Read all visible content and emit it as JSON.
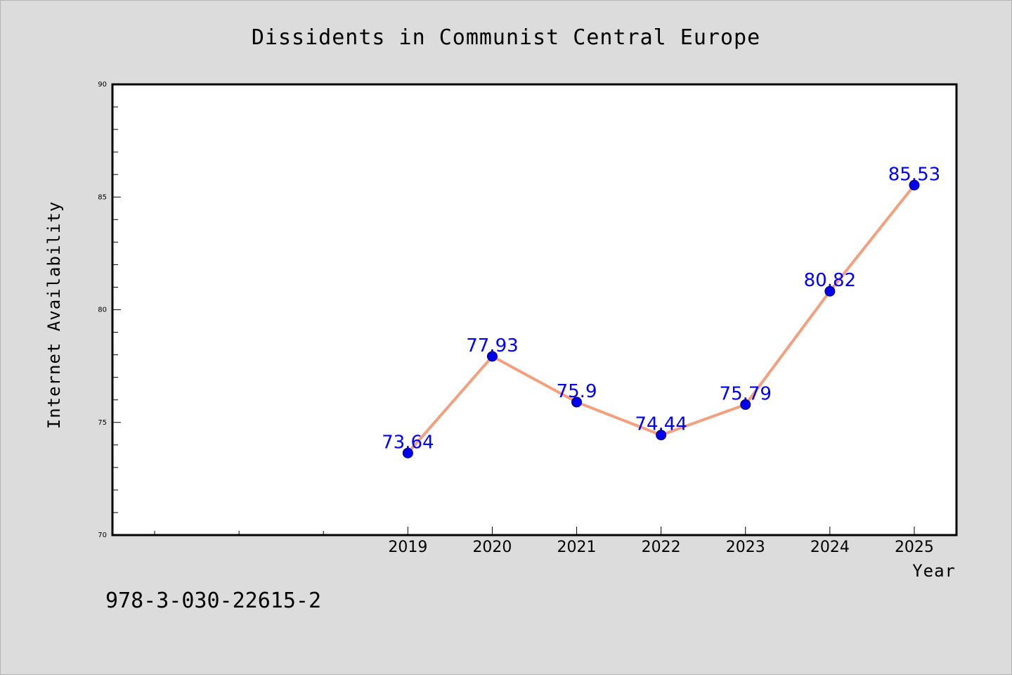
{
  "chart_data": {
    "type": "line",
    "title": "Dissidents in Communist Central Europe",
    "xlabel": "Year",
    "ylabel": "Internet Availability",
    "x": [
      2019,
      2020,
      2021,
      2022,
      2023,
      2024,
      2025
    ],
    "values": [
      73.64,
      77.93,
      75.9,
      74.44,
      75.79,
      80.82,
      85.53
    ],
    "data_labels": [
      "73.64",
      "77.93",
      "75.9",
      "74.44",
      "75.79",
      "80.82",
      "85.53"
    ],
    "ylim": [
      70,
      90
    ],
    "yticks": [
      70,
      75,
      80,
      85,
      90
    ],
    "ytick_labels": [
      "70",
      "75",
      "80",
      "85",
      "90"
    ],
    "xlim": [
      2015.5,
      2025.5
    ],
    "xticks_labeled": [
      2019,
      2020,
      2021,
      2022,
      2023,
      2024,
      2025
    ],
    "xtick_labels": [
      "2019",
      "2020",
      "2021",
      "2022",
      "2023",
      "2024",
      "2025"
    ],
    "xticks_unlabeled": [
      2016,
      2017,
      2018
    ],
    "grid": false,
    "legend": "none",
    "colors": {
      "line": "#f4a07e",
      "marker": "#0000ee",
      "data_label": "#0000ff",
      "background": "#dcdcdc",
      "plot_background": "#ffffff"
    }
  },
  "footnote": "978-3-030-22615-2"
}
